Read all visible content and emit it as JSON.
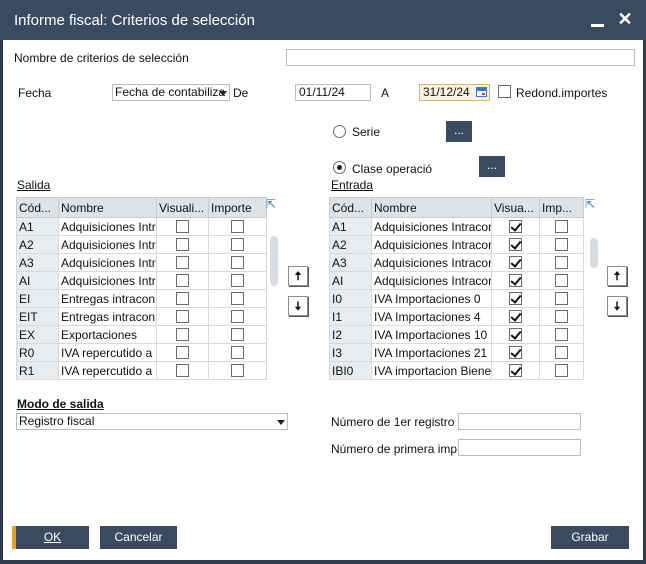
{
  "window": {
    "title": "Informe fiscal: Criterios de selección"
  },
  "criteria": {
    "name_label": "Nombre de criterios de selección",
    "name_value": ""
  },
  "date": {
    "label": "Fecha",
    "type_value": "Fecha de contabiliza",
    "from_label": "De",
    "from_value": "01/11/24",
    "to_label": "A",
    "to_value": "31/12/24",
    "round_label": "Redond.importes",
    "round_checked": false
  },
  "series": {
    "serie_label": "Serie",
    "clase_label": "Clase operació",
    "dots": "..."
  },
  "output_table": {
    "title": "Salida",
    "headers": [
      "Cód...",
      "Nombre",
      "Visuali...",
      "Importe"
    ],
    "rows": [
      {
        "code": "A1",
        "name": "Adquisiciones Intr",
        "visual": false,
        "importe": false
      },
      {
        "code": "A2",
        "name": "Adquisiciones Intr",
        "visual": false,
        "importe": false
      },
      {
        "code": "A3",
        "name": "Adquisiciones Intr",
        "visual": false,
        "importe": false
      },
      {
        "code": "AI",
        "name": "Adquisiciones Intr",
        "visual": false,
        "importe": false
      },
      {
        "code": "EI",
        "name": "Entregas intracon",
        "visual": false,
        "importe": false
      },
      {
        "code": "EIT",
        "name": "Entregas intracon",
        "visual": false,
        "importe": false
      },
      {
        "code": "EX",
        "name": "Exportaciones",
        "visual": false,
        "importe": false
      },
      {
        "code": "R0",
        "name": "IVA repercutido a",
        "visual": false,
        "importe": false
      },
      {
        "code": "R1",
        "name": "IVA repercutido a",
        "visual": false,
        "importe": false
      }
    ]
  },
  "input_table": {
    "title": "Entrada",
    "headers": [
      "Cód...",
      "Nombre",
      "Visua...",
      "Imp..."
    ],
    "rows": [
      {
        "code": "A1",
        "name": "Adquisiciones Intracor",
        "visual": true,
        "importe": false
      },
      {
        "code": "A2",
        "name": "Adquisiciones Intracor",
        "visual": true,
        "importe": false
      },
      {
        "code": "A3",
        "name": "Adquisiciones Intracor",
        "visual": true,
        "importe": false
      },
      {
        "code": "AI",
        "name": "Adquisiciones Intracor",
        "visual": true,
        "importe": false
      },
      {
        "code": "I0",
        "name": "IVA Importaciones 0",
        "visual": true,
        "importe": false
      },
      {
        "code": "I1",
        "name": "IVA Importaciones 4",
        "visual": true,
        "importe": false
      },
      {
        "code": "I2",
        "name": "IVA Importaciones 10",
        "visual": true,
        "importe": false
      },
      {
        "code": "I3",
        "name": "IVA Importaciones 21",
        "visual": true,
        "importe": false
      },
      {
        "code": "IBI0",
        "name": "IVA importacion Biene",
        "visual": true,
        "importe": false
      }
    ]
  },
  "mode": {
    "title": "Modo de salida",
    "value": "Registro fiscal"
  },
  "numbers": {
    "first_reg_label": "Número de 1er registro",
    "first_page_label": "Número de primera imp"
  },
  "buttons": {
    "ok": "OK",
    "cancel": "Cancelar",
    "save": "Grabar"
  },
  "colors": {
    "titlebar": "#3a4b61",
    "accent": "#e0a623"
  }
}
